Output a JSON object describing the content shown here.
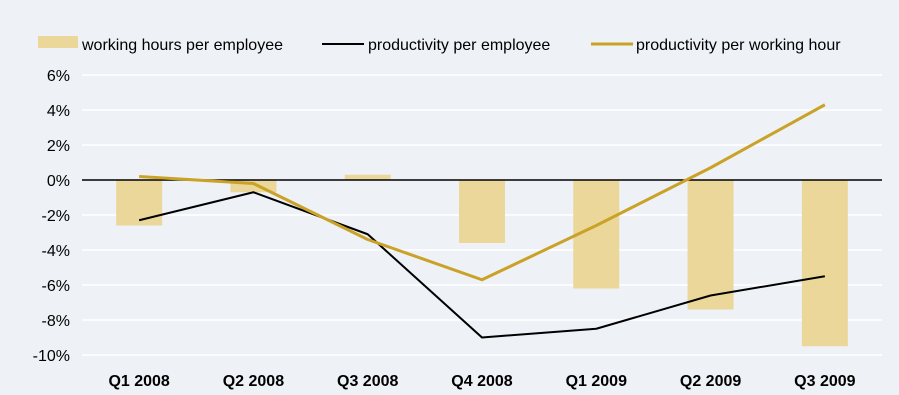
{
  "chart_data": {
    "type": "bar",
    "categories": [
      "Q1 2008",
      "Q2 2008",
      "Q3 2008",
      "Q4 2008",
      "Q1 2009",
      "Q2 2009",
      "Q3 2009"
    ],
    "series": [
      {
        "name": "working hours per employee",
        "kind": "bar",
        "values": [
          -2.6,
          -0.7,
          0.3,
          -3.6,
          -6.2,
          -7.4,
          -9.5
        ]
      },
      {
        "name": "productivity per employee",
        "kind": "line",
        "values": [
          -2.3,
          -0.7,
          -3.1,
          -9.0,
          -8.5,
          -6.6,
          -5.5
        ]
      },
      {
        "name": "productivity per working hour",
        "kind": "line",
        "values": [
          0.2,
          -0.2,
          -3.4,
          -5.7,
          -2.6,
          0.7,
          4.3
        ]
      }
    ],
    "ylim": [
      -10,
      6
    ],
    "yticks": [
      6,
      4,
      2,
      0,
      -2,
      -4,
      -6,
      -8,
      -10
    ],
    "ytick_labels": [
      "6%",
      "4%",
      "2%",
      "0%",
      "-2%",
      "-4%",
      "-6%",
      "-8%",
      "-10%"
    ],
    "grid": true,
    "legend_position": "top",
    "colors": {
      "bar": "#ecd79a",
      "line_employee": "#000000",
      "line_hour": "#c9a227",
      "grid": "#ffffff",
      "background": "#eef1f6"
    }
  }
}
